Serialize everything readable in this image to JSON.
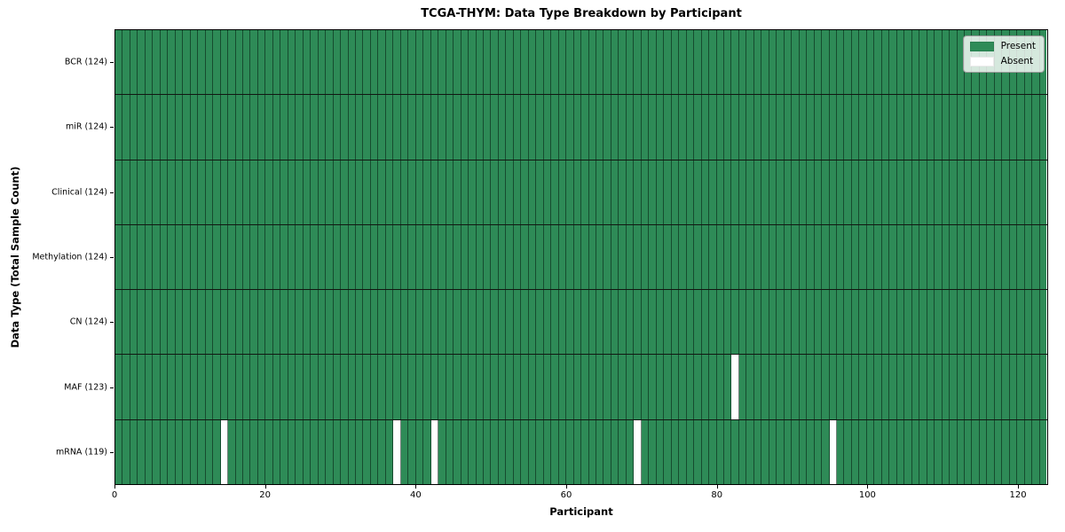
{
  "title": "TCGA-THYM: Data Type Breakdown by Participant",
  "chart_data": {
    "type": "heatmap",
    "title": "TCGA-THYM: Data Type Breakdown by Participant",
    "xlabel": "Participant",
    "ylabel": "Data Type (Total Sample Count)",
    "x_ticks": [
      0,
      20,
      40,
      60,
      80,
      100,
      120
    ],
    "xlim": [
      0,
      124
    ],
    "n_participants": 124,
    "grid": false,
    "legend": {
      "position": "upper right",
      "entries": [
        {
          "label": "Present",
          "color": "#2e8b57"
        },
        {
          "label": "Absent",
          "color": "#ffffff"
        }
      ]
    },
    "rows": [
      {
        "label": "BCR (124)",
        "data_type": "BCR",
        "sample_count": 124,
        "absent_participants": []
      },
      {
        "label": "miR (124)",
        "data_type": "miR",
        "sample_count": 124,
        "absent_participants": []
      },
      {
        "label": "Clinical (124)",
        "data_type": "Clinical",
        "sample_count": 124,
        "absent_participants": []
      },
      {
        "label": "Methylation (124)",
        "data_type": "Methylation",
        "sample_count": 124,
        "absent_participants": []
      },
      {
        "label": "CN (124)",
        "data_type": "CN",
        "sample_count": 124,
        "absent_participants": []
      },
      {
        "label": "MAF (123)",
        "data_type": "MAF",
        "sample_count": 123,
        "absent_participants": [
          82
        ]
      },
      {
        "label": "mRNA (119)",
        "data_type": "mRNA",
        "sample_count": 119,
        "absent_participants": [
          14,
          37,
          42,
          69,
          95
        ]
      }
    ],
    "colors": {
      "present": "#2e8b57",
      "absent": "#ffffff",
      "cell_edge": "rgba(4,26,15,0.55)",
      "row_divider": "#121712",
      "spine": "#000000"
    }
  }
}
